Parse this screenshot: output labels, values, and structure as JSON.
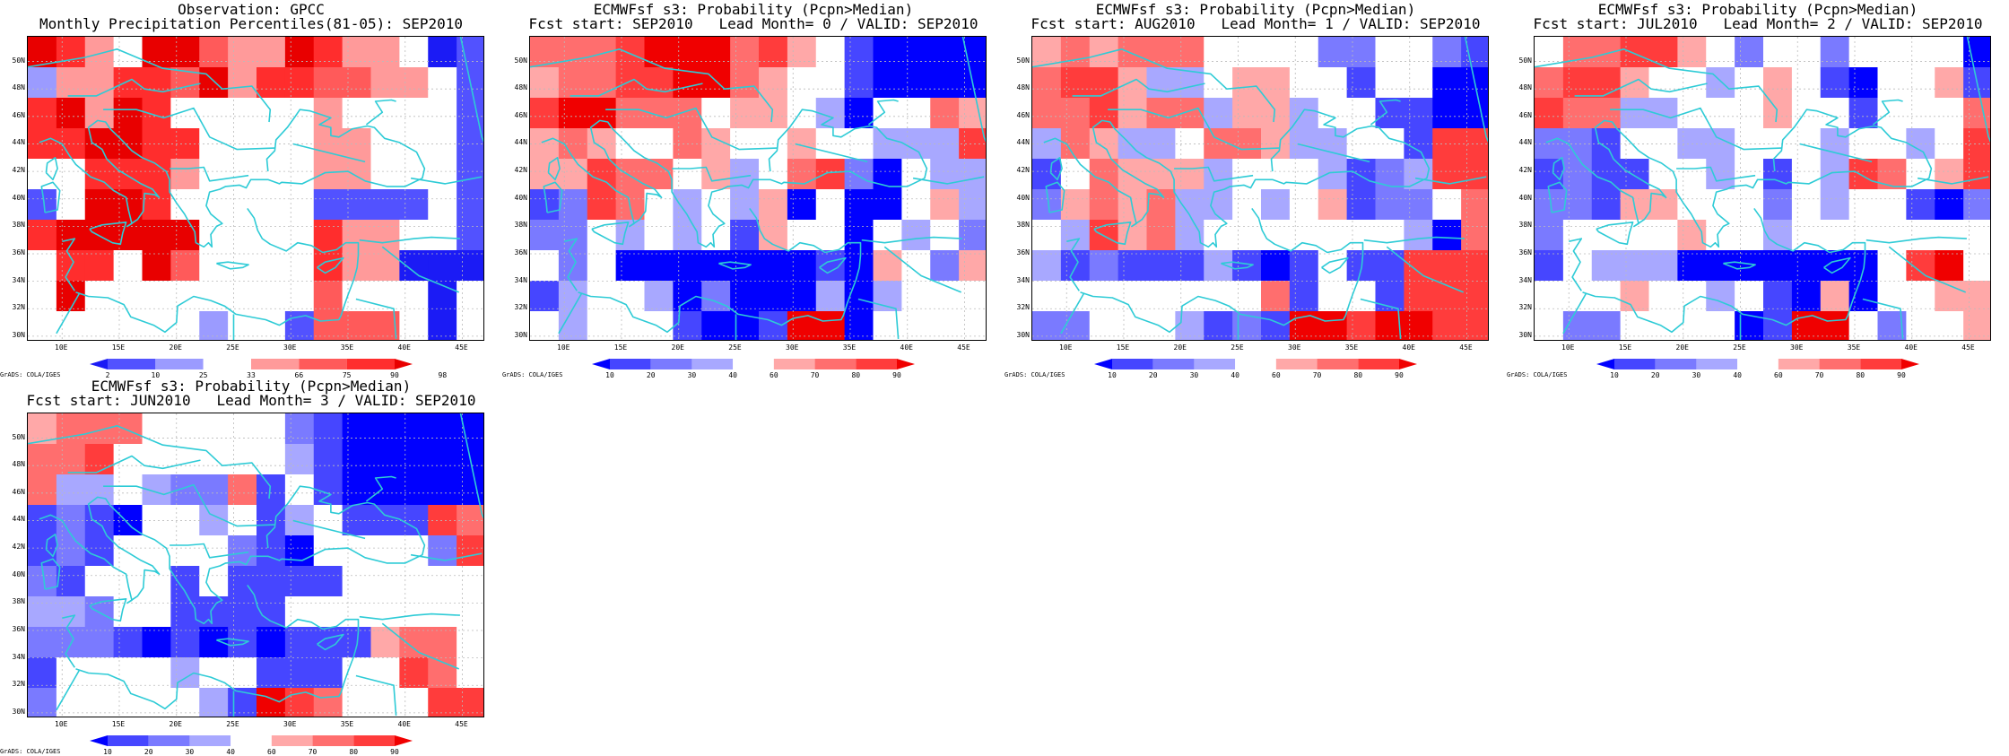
{
  "lat_labels": [
    "50N",
    "48N",
    "46N",
    "44N",
    "42N",
    "40N",
    "38N",
    "36N",
    "34N",
    "32N",
    "30N"
  ],
  "lon_labels": [
    "10E",
    "15E",
    "20E",
    "25E",
    "30E",
    "35E",
    "40E",
    "45E"
  ],
  "footer": "GrADS: COLA/IGES",
  "colors": {
    "coast": "#2ecbd6",
    "obs_palette": [
      "#1b1bf5",
      "#5252ff",
      "#9b9bff",
      "#ffffff",
      "#ff9a9a",
      "#ff5a5a",
      "#ff2d2d",
      "#e80000"
    ],
    "fcst_palette": [
      "#0000ff",
      "#4646ff",
      "#7a7aff",
      "#a8a8ff",
      "#ffffff",
      "#ffa8a8",
      "#ff6e6e",
      "#ff3c3c",
      "#f00000"
    ]
  },
  "panels": [
    {
      "title_line1": "Observation: GPCC",
      "title_line2": "Monthly Precipitation Percentiles(81-05): SEP2010",
      "colorbar_labels": [
        "2",
        "10",
        "25",
        "33",
        "66",
        "75",
        "90",
        "98"
      ],
      "grid": [
        "7643775447644301",
        "2446657466554431",
        "6747633333433331",
        "6677663333443331",
        "3366643333443331",
        "1377633333111131",
        "6777773333644331",
        "3663753333644000",
        "3733333333533303",
        "3333332331555303"
      ]
    },
    {
      "title_line1": "ECMWFsf s3: Probability (Pcpn>Median)",
      "title_line2": "Fcst start: SEP2010   Lead Month= 0 / VALID: SEP2010",
      "colorbar_labels": [
        "10",
        "20",
        "30",
        "40",
        "60",
        "70",
        "80",
        "90"
      ],
      "grid": [
        "6667888675410000",
        "5667788654410000",
        "7886664554304465",
        "5654465445443337",
        "5576645346720433",
        "1276434350400453",
        "2243434154404342",
        "4240000000105425",
        "1344302000303444",
        "4344410018804444"
      ]
    },
    {
      "title_line1": "ECMWFsf s3: Probability (Pcpn>Median)",
      "title_line2": "Fcst start: AUG2010   Lead Month= 1 / VALID: SEP2010",
      "colorbar_labels": [
        "10",
        "20",
        "30",
        "40",
        "60",
        "70",
        "80",
        "90"
      ],
      "grid": [
        "5656664444224421",
        "6775334554414400",
        "6675663553441100",
        "3653346653344177",
        "1465553444312377",
        "2565633434512246",
        "4375634444444306",
        "3121113101411777",
        "4444444461441777",
        "2244431218878877"
      ]
    },
    {
      "title_line1": "ECMWFsf s3: Probability (Pcpn>Median)",
      "title_line2": "Fcst start: JUL2010   Lead Month= 2 / VALID: SEP2010",
      "colorbar_labels": [
        "10",
        "20",
        "30",
        "40",
        "60",
        "70",
        "80",
        "90"
      ],
      "grid": [
        "4667754244244440",
        "6775443454104451",
        "7663344454414446",
        "2214433444344347",
        "1211443414376457",
        "2215544424344102",
        "2444454434444444",
        "1433300000004784",
        "4445443410504455",
        "4224444018842445"
      ]
    },
    {
      "title_line1": "ECMWFsf s3: Probability (Pcpn>Median)",
      "title_line2": "Fcst start: JUN2010   Lead Month= 3 / VALID: SEP2010",
      "colorbar_labels": [
        "10",
        "20",
        "30",
        "40",
        "60",
        "70",
        "80",
        "90"
      ],
      "grid": [
        "5666444442100000",
        "6674444443100000",
        "6334322614100000",
        "1210443413411176",
        "1214444210444427",
        "2144414111144444",
        "3324411114444444",
        "2221010101115664",
        "1444434411144764",
        "2444443187644477"
      ]
    }
  ]
}
